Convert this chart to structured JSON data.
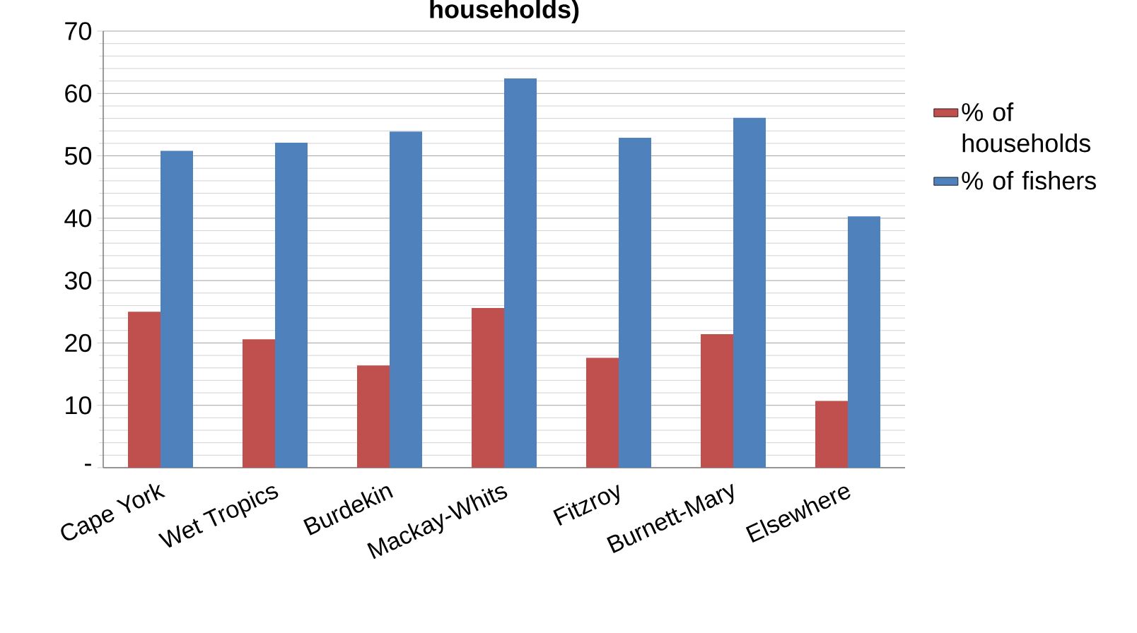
{
  "chart_data": {
    "type": "bar",
    "title": "households)",
    "categories": [
      "Cape York",
      "Wet Tropics",
      "Burdekin",
      "Mackay-Whits",
      "Fitzroy",
      "Burnett-Mary",
      "Elsewhere"
    ],
    "series": [
      {
        "name": "% of households",
        "color": "#c0504d",
        "values": [
          25.0,
          20.6,
          16.4,
          25.6,
          17.6,
          21.4,
          10.7
        ]
      },
      {
        "name": "% of fishers",
        "color": "#4f81bd",
        "values": [
          50.8,
          52.1,
          53.9,
          62.4,
          52.9,
          56.1,
          40.3
        ]
      }
    ],
    "ylim": [
      0,
      70
    ],
    "yticks": [
      {
        "value": 0,
        "label": "-"
      },
      10,
      20,
      30,
      40,
      50,
      60,
      70
    ],
    "grid": "y",
    "legend": "right"
  }
}
